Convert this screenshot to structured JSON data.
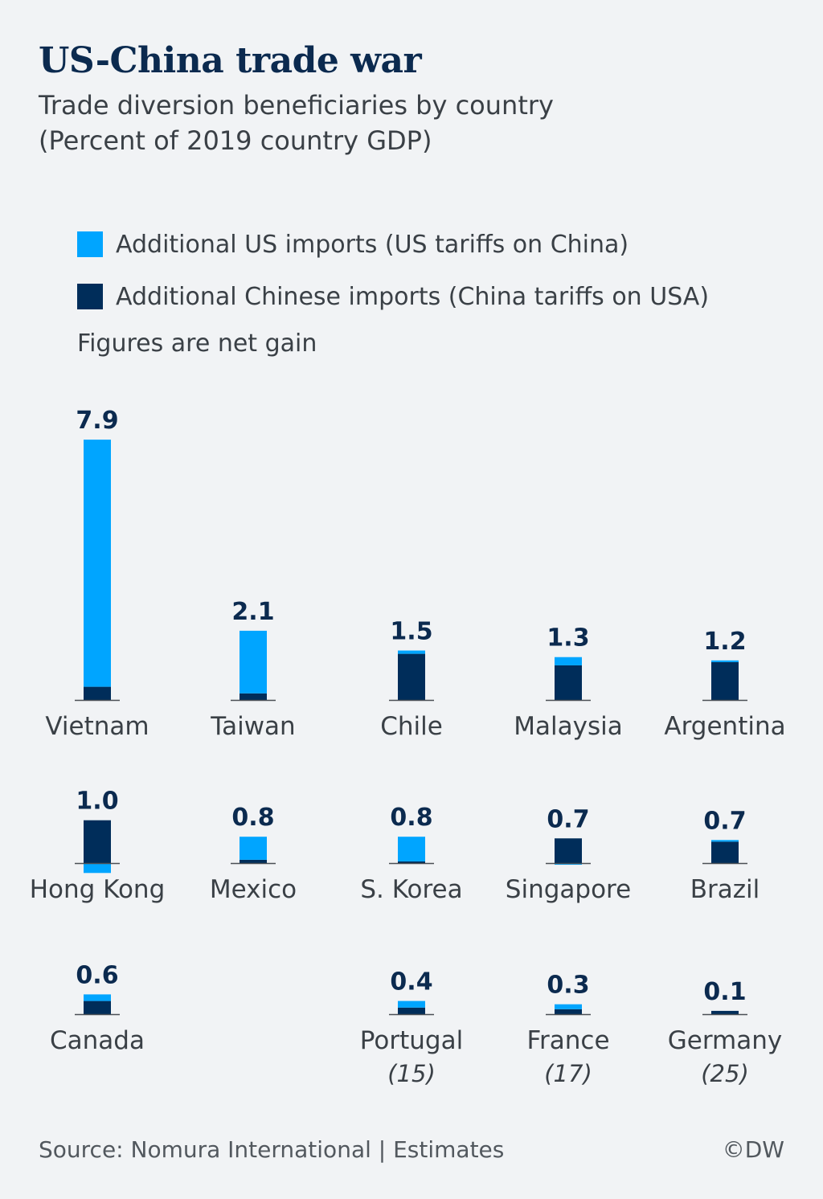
{
  "title": "US-China trade war",
  "subtitle_line1": "Trade diversion beneficiaries by country",
  "subtitle_line2": "(Percent of 2019 country GDP)",
  "legend": {
    "us_imports": "Additional US imports (US tariffs on China)",
    "chinese_imports": "Additional Chinese imports (China tariffs on USA)"
  },
  "note": "Figures are net gain",
  "colors": {
    "us_imports": "#00a5ff",
    "chinese_imports": "#002d5a",
    "baseline": "#4a4f55"
  },
  "footer": {
    "source": "Source: Nomura International | Estimates",
    "credit": "©DW"
  },
  "chart_data": {
    "type": "bar",
    "stacked": true,
    "series": [
      {
        "name": "Additional US imports (US tariffs on China)"
      },
      {
        "name": "Additional Chinese imports (China tariffs on USA)"
      }
    ],
    "countries": [
      {
        "name": "Vietnam",
        "total": "7.9",
        "us": 7.5,
        "china": 0.4
      },
      {
        "name": "Taiwan",
        "total": "2.1",
        "us": 1.9,
        "china": 0.2
      },
      {
        "name": "Chile",
        "total": "1.5",
        "us": 0.1,
        "china": 1.4
      },
      {
        "name": "Malaysia",
        "total": "1.3",
        "us": 0.25,
        "china": 1.05
      },
      {
        "name": "Argentina",
        "total": "1.2",
        "us": 0.05,
        "china": 1.15
      },
      {
        "name": "Hong Kong",
        "total": "1.0",
        "us": -0.3,
        "china": 1.3
      },
      {
        "name": "Mexico",
        "total": "0.8",
        "us": 0.7,
        "china": 0.1
      },
      {
        "name": "S. Korea",
        "total": "0.8",
        "us": 0.75,
        "china": 0.05
      },
      {
        "name": "Singapore",
        "total": "0.7",
        "us": -0.05,
        "china": 0.75
      },
      {
        "name": "Brazil",
        "total": "0.7",
        "us": 0.05,
        "china": 0.65
      },
      {
        "name": "Canada",
        "total": "0.6",
        "us": 0.2,
        "china": 0.4
      },
      {
        "name": "Portugal",
        "total": "0.4",
        "us": 0.2,
        "china": 0.2,
        "rank": "(15)"
      },
      {
        "name": "France",
        "total": "0.3",
        "us": 0.15,
        "china": 0.15,
        "rank": "(17)"
      },
      {
        "name": "Germany",
        "total": "0.1",
        "us": 0.0,
        "china": 0.1,
        "rank": "(25)"
      }
    ]
  }
}
